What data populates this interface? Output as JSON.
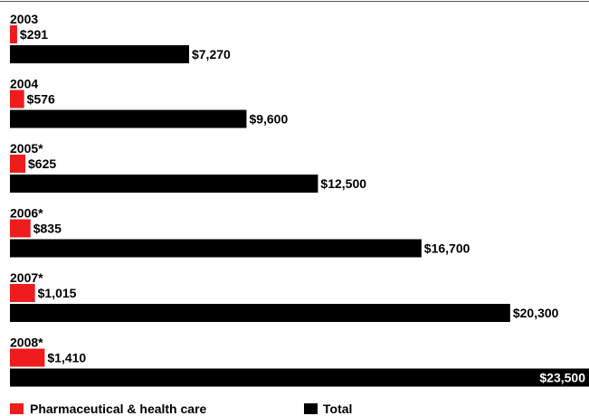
{
  "chart_data": {
    "type": "bar",
    "orientation": "horizontal",
    "categories": [
      "2003",
      "2004",
      "2005*",
      "2006*",
      "2007*",
      "2008*"
    ],
    "series": [
      {
        "name": "Pharmaceutical & health care",
        "color": "#ee1c1c",
        "values": [
          291,
          576,
          625,
          835,
          1015,
          1410
        ],
        "labels": [
          "$291",
          "$576",
          "$625",
          "$835",
          "$1,015",
          "$1,410"
        ]
      },
      {
        "name": "Total",
        "color": "#000000",
        "values": [
          7270,
          9600,
          12500,
          16700,
          20300,
          23500
        ],
        "labels": [
          "$7,270",
          "$9,600",
          "$12,500",
          "$16,700",
          "$20,300",
          "$23,500"
        ]
      }
    ],
    "title": "",
    "xlabel": "",
    "ylabel": "",
    "xlim": [
      0,
      23500
    ],
    "grid": false,
    "legend_position": "bottom-left"
  }
}
